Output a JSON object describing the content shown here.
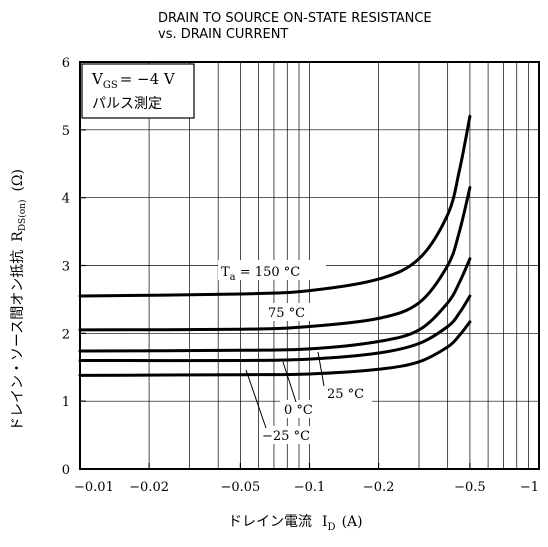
{
  "chart_data": {
    "type": "line",
    "title": "DRAIN TO SOURCE ON-STATE RESISTANCE",
    "subtitle": "vs. DRAIN CURRENT",
    "xlabel": "ドレイン電流",
    "xlabel_symbol": "I",
    "xlabel_sub": "D",
    "xlabel_unit": "(A)",
    "ylabel": "ドレイン・ソース間オン抵抗",
    "ylabel_symbol": "R",
    "ylabel_sub": "DS(on)",
    "ylabel_unit": "(Ω)",
    "x_scale": "log",
    "xlim": [
      -0.01,
      -1
    ],
    "ylim": [
      0,
      6
    ],
    "x_ticks": [
      {
        "value": -0.01,
        "label": "−0.01"
      },
      {
        "value": -0.02,
        "label": "−0.02"
      },
      {
        "value": -0.05,
        "label": "−0.05"
      },
      {
        "value": -0.1,
        "label": "−0.1"
      },
      {
        "value": -0.2,
        "label": "−0.2"
      },
      {
        "value": -0.5,
        "label": "−0.5"
      },
      {
        "value": -1,
        "label": "−1"
      }
    ],
    "y_ticks": [
      0,
      1,
      2,
      3,
      4,
      5,
      6
    ],
    "grid": true,
    "condition_box": {
      "line1_symbol": "V",
      "line1_sub": "GS",
      "line1_rest": "= −4 V",
      "line2": "パルス測定"
    },
    "series": [
      {
        "name": "Ta = 150 °C",
        "label_prefix": "T",
        "label_sub": "a",
        "label_rest": " = 150 °C",
        "x": [
          -0.01,
          -0.05,
          -0.1,
          -0.2,
          -0.3,
          -0.4,
          -0.45,
          -0.5
        ],
        "y": [
          2.55,
          2.58,
          2.63,
          2.8,
          3.1,
          3.75,
          4.4,
          5.2
        ]
      },
      {
        "name": "75 °C",
        "x": [
          -0.01,
          -0.05,
          -0.1,
          -0.2,
          -0.3,
          -0.4,
          -0.45,
          -0.5
        ],
        "y": [
          2.05,
          2.06,
          2.1,
          2.22,
          2.45,
          3.0,
          3.5,
          4.15
        ]
      },
      {
        "name": "25 °C",
        "x": [
          -0.01,
          -0.05,
          -0.1,
          -0.2,
          -0.3,
          -0.4,
          -0.45,
          -0.5
        ],
        "y": [
          1.74,
          1.75,
          1.77,
          1.88,
          2.05,
          2.45,
          2.75,
          3.1
        ]
      },
      {
        "name": "0 °C",
        "x": [
          -0.01,
          -0.05,
          -0.1,
          -0.2,
          -0.3,
          -0.4,
          -0.45,
          -0.5
        ],
        "y": [
          1.6,
          1.6,
          1.62,
          1.71,
          1.85,
          2.1,
          2.3,
          2.55
        ]
      },
      {
        "name": "−25 °C",
        "x": [
          -0.01,
          -0.05,
          -0.1,
          -0.2,
          -0.3,
          -0.4,
          -0.45,
          -0.5
        ],
        "y": [
          1.38,
          1.39,
          1.4,
          1.47,
          1.58,
          1.8,
          1.97,
          2.17
        ]
      }
    ]
  }
}
